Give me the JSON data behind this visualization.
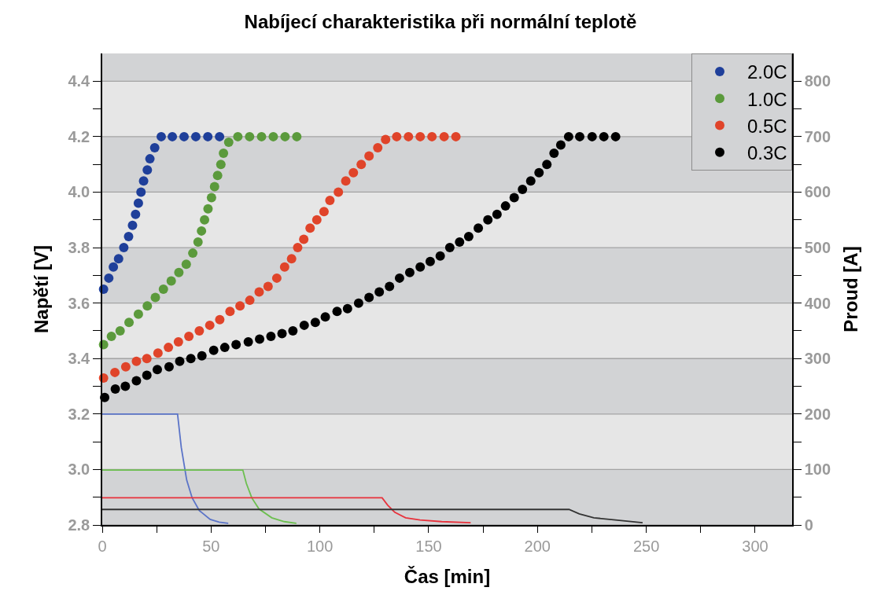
{
  "chart_data": {
    "type": "scatter",
    "title": "Nabíjecí charakteristika při normální teplotě",
    "xlabel": "Čas [min]",
    "ylabel": "Napětí [V]",
    "y2label": "Proud [A]",
    "xlim": [
      0,
      317
    ],
    "xticks": [
      0,
      {
        "value": 25,
        "label": null
      },
      50,
      {
        "value": 75,
        "label": null
      },
      100,
      {
        "value": 125,
        "label": null
      },
      150,
      {
        "value": 175,
        "label": null
      },
      200,
      {
        "value": 225,
        "label": null
      },
      250,
      {
        "value": 275,
        "label": null
      },
      300
    ],
    "ylim": [
      2.8,
      4.5
    ],
    "yticks": [
      {
        "value": 2.8,
        "label": "2.8"
      },
      {
        "value": 2.9,
        "label": null
      },
      {
        "value": 3.0,
        "label": "3.0"
      },
      {
        "value": 3.1,
        "label": null
      },
      {
        "value": 3.2,
        "label": "3.2"
      },
      {
        "value": 3.3,
        "label": null
      },
      {
        "value": 3.4,
        "label": "3.4"
      },
      {
        "value": 3.5,
        "label": null
      },
      {
        "value": 3.6,
        "label": "3.6"
      },
      {
        "value": 3.7,
        "label": null
      },
      {
        "value": 3.8,
        "label": "3.8"
      },
      {
        "value": 3.9,
        "label": null
      },
      {
        "value": 4.0,
        "label": "4.0"
      },
      {
        "value": 4.1,
        "label": null
      },
      {
        "value": 4.2,
        "label": "4.2"
      },
      {
        "value": 4.3,
        "label": null
      },
      {
        "value": 4.4,
        "label": "4.4"
      }
    ],
    "y2lim": [
      0,
      850
    ],
    "y2ticks": [
      0,
      {
        "value": 50,
        "label": null
      },
      100,
      {
        "value": 150,
        "label": null
      },
      200,
      {
        "value": 250,
        "label": null
      },
      300,
      {
        "value": 350,
        "label": null
      },
      400,
      {
        "value": 450,
        "label": null
      },
      500,
      {
        "value": 550,
        "label": null
      },
      600,
      {
        "value": 650,
        "label": null
      },
      700,
      {
        "value": 750,
        "label": null
      },
      800
    ],
    "grid": "y",
    "legend": "top right",
    "marker": "circle",
    "bands": [
      {
        "axis": "y",
        "from": 2.8,
        "to": 3.0,
        "color": "#d2d3d5"
      },
      {
        "axis": "y",
        "from": 3.2,
        "to": 3.4,
        "color": "#d2d3d5"
      },
      {
        "axis": "y",
        "from": 3.6,
        "to": 3.8,
        "color": "#d2d3d5"
      },
      {
        "axis": "y",
        "from": 4.0,
        "to": 4.2,
        "color": "#d2d3d5"
      },
      {
        "axis": "y",
        "from": 4.4,
        "to": 4.5,
        "color": "#d2d3d5"
      }
    ],
    "series": [
      {
        "name": "2.0C",
        "color": "#1f3f9a",
        "x": [
          0.6,
          3.0,
          5.1,
          7.5,
          9.9,
          12.1,
          13.9,
          15.3,
          16.6,
          17.8,
          19.0,
          20.7,
          21.9,
          24.1,
          27.1,
          32.2,
          37.6,
          43.0,
          48.5,
          53.9
        ],
        "values": [
          3.65,
          3.69,
          3.73,
          3.76,
          3.8,
          3.84,
          3.88,
          3.92,
          3.96,
          4.0,
          4.04,
          4.08,
          4.12,
          4.16,
          4.2,
          4.2,
          4.2,
          4.2,
          4.2,
          4.2
        ]
      },
      {
        "name": "1.0C",
        "color": "#5b9a3c",
        "x": [
          0.6,
          4.2,
          8.2,
          12.3,
          16.6,
          20.7,
          24.4,
          28.1,
          31.7,
          35.2,
          38.6,
          41.6,
          44.0,
          45.6,
          47.0,
          48.6,
          50.2,
          51.6,
          53.0,
          54.5,
          55.7,
          58.1,
          62.3,
          67.7,
          73.2,
          78.6,
          84.0,
          89.4
        ],
        "values": [
          3.45,
          3.48,
          3.5,
          3.53,
          3.56,
          3.59,
          3.62,
          3.65,
          3.68,
          3.71,
          3.74,
          3.78,
          3.82,
          3.86,
          3.9,
          3.94,
          3.98,
          4.02,
          4.06,
          4.1,
          4.14,
          4.18,
          4.2,
          4.2,
          4.2,
          4.2,
          4.2,
          4.2
        ]
      },
      {
        "name": "0.5C",
        "color": "#e0442a",
        "x": [
          0.6,
          5.8,
          10.8,
          15.7,
          20.5,
          25.6,
          30.4,
          35.0,
          39.8,
          44.6,
          49.4,
          54.0,
          58.7,
          63.3,
          67.8,
          72.1,
          76.2,
          80.2,
          83.8,
          87.0,
          89.8,
          92.6,
          95.5,
          98.6,
          101.9,
          104.6,
          108.5,
          111.9,
          115.4,
          119.0,
          122.6,
          126.6,
          130.2,
          135.3,
          140.7,
          146.1,
          151.5,
          157.1,
          162.5
        ],
        "values": [
          3.33,
          3.35,
          3.37,
          3.39,
          3.4,
          3.42,
          3.44,
          3.46,
          3.48,
          3.5,
          3.52,
          3.54,
          3.57,
          3.59,
          3.61,
          3.64,
          3.66,
          3.69,
          3.73,
          3.76,
          3.8,
          3.83,
          3.87,
          3.9,
          3.93,
          3.97,
          4.0,
          4.04,
          4.07,
          4.1,
          4.13,
          4.16,
          4.19,
          4.2,
          4.2,
          4.2,
          4.2,
          4.2,
          4.2
        ]
      },
      {
        "name": "0.3C",
        "color": "#000000",
        "x": [
          1.1,
          6.0,
          10.6,
          15.7,
          20.5,
          25.3,
          30.7,
          35.6,
          40.7,
          45.8,
          51.2,
          56.3,
          61.5,
          67.1,
          72.3,
          77.5,
          82.6,
          87.6,
          92.8,
          97.9,
          102.5,
          107.9,
          112.7,
          117.8,
          122.6,
          127.3,
          132.0,
          136.6,
          141.3,
          146.1,
          150.7,
          155.3,
          159.7,
          164.2,
          168.4,
          172.8,
          177.2,
          181.4,
          185.3,
          189.3,
          193.1,
          196.9,
          200.7,
          204.3,
          207.6,
          210.7,
          214.3,
          219.4,
          225.1,
          230.5,
          235.9
        ],
        "values": [
          3.26,
          3.29,
          3.3,
          3.32,
          3.34,
          3.36,
          3.37,
          3.39,
          3.4,
          3.41,
          3.43,
          3.44,
          3.45,
          3.46,
          3.47,
          3.48,
          3.49,
          3.5,
          3.52,
          3.53,
          3.55,
          3.57,
          3.58,
          3.6,
          3.62,
          3.64,
          3.66,
          3.69,
          3.71,
          3.73,
          3.75,
          3.77,
          3.8,
          3.82,
          3.84,
          3.87,
          3.9,
          3.92,
          3.95,
          3.98,
          4.01,
          4.04,
          4.07,
          4.1,
          4.14,
          4.17,
          4.2,
          4.2,
          4.2,
          4.2,
          4.2
        ]
      },
      {
        "type": "line",
        "axis": "y2",
        "marker": "none",
        "color": "#5b74c8",
        "x": [
          0,
          34.6,
          36.3,
          38.8,
          41.3,
          44.6,
          49.6,
          53.7,
          57.9
        ],
        "values": [
          200,
          200,
          140,
          81,
          49,
          26,
          10,
          5,
          3
        ]
      },
      {
        "type": "line",
        "axis": "y2",
        "marker": "none",
        "color": "#6cbf4f",
        "x": [
          0,
          64.6,
          66.2,
          68.7,
          72.0,
          77.9,
          83.7,
          89.2
        ],
        "values": [
          99,
          99,
          75,
          49,
          29,
          13,
          6,
          3
        ]
      },
      {
        "type": "line",
        "axis": "y2",
        "marker": "none",
        "color": "#e8323c",
        "x": [
          0,
          128.6,
          131.1,
          134.4,
          139.4,
          146.0,
          156.0,
          169.3
        ],
        "values": [
          49,
          49,
          36,
          23,
          13,
          9,
          6,
          4
        ]
      },
      {
        "type": "line",
        "axis": "y2",
        "marker": "none",
        "color": "#333333",
        "x": [
          0,
          214.5,
          219.2,
          225.9,
          235.8,
          248.3
        ],
        "values": [
          28,
          28,
          20,
          13,
          9,
          4
        ]
      }
    ]
  }
}
